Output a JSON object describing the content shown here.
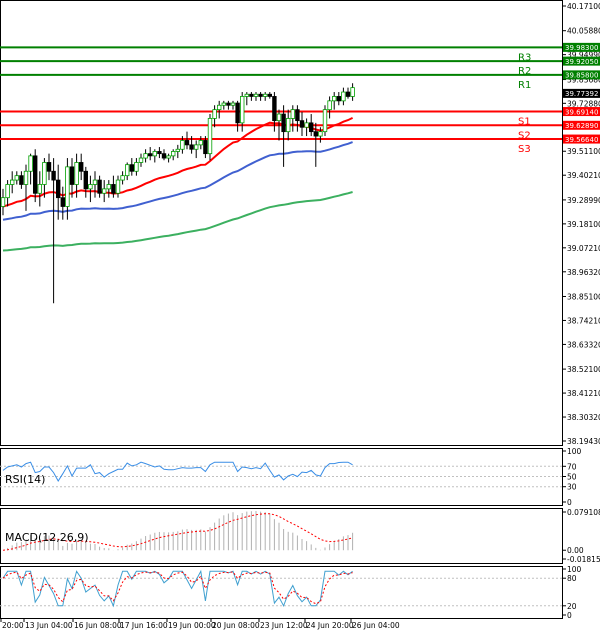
{
  "chart_data": {
    "type": "candlestick",
    "instrument_panel": {
      "y_ticks": [
        "40.17100",
        "40.05880",
        "39.94990",
        "39.83680",
        "39.72880",
        "39.62890",
        "39.51100",
        "39.40210",
        "39.28990",
        "39.18100",
        "39.07210",
        "38.96320",
        "38.85100",
        "38.74210",
        "38.63320",
        "38.52100",
        "38.41210",
        "38.30320",
        "38.19430"
      ],
      "ylim": [
        38.1943,
        40.171
      ],
      "x_ticks": [
        "20:00",
        "13 Jun 04:00",
        "16 Jun 08:00",
        "17 Jun 16:00",
        "19 Jun 00:00",
        "20 Jun 08:00",
        "23 Jun 12:00",
        "24 Jun 20:00",
        "26 Jun 04:00"
      ],
      "last_price": "39.77392",
      "levels": [
        {
          "name": "R3",
          "value": 39.983,
          "label": "39.98300",
          "color": "#008000"
        },
        {
          "name": "R2",
          "value": 39.9205,
          "label": "39.92050",
          "color": "#008000"
        },
        {
          "name": "R1",
          "value": 39.858,
          "label": "39.85800",
          "color": "#008000"
        },
        {
          "name": "S1",
          "value": 39.6914,
          "label": "39.69140",
          "color": "#ff0000"
        },
        {
          "name": "S2",
          "value": 39.6289,
          "label": "39.62890",
          "color": "#ff0000"
        },
        {
          "name": "S3",
          "value": 39.5664,
          "label": "39.56640",
          "color": "#ff0000"
        }
      ],
      "candles": [
        [
          39.26,
          39.34,
          39.22,
          39.3
        ],
        [
          39.3,
          39.38,
          39.26,
          39.36
        ],
        [
          39.36,
          39.42,
          39.32,
          39.38
        ],
        [
          39.38,
          39.42,
          39.36,
          39.4
        ],
        [
          39.4,
          39.42,
          39.34,
          39.36
        ],
        [
          39.36,
          39.45,
          39.24,
          39.42
        ],
        [
          39.42,
          39.5,
          39.36,
          39.49
        ],
        [
          39.49,
          39.52,
          39.28,
          39.32
        ],
        [
          39.32,
          39.42,
          39.26,
          39.36
        ],
        [
          39.36,
          39.48,
          39.3,
          39.46
        ],
        [
          39.46,
          39.5,
          39.38,
          39.42
        ],
        [
          39.42,
          39.48,
          38.82,
          39.38
        ],
        [
          39.38,
          39.45,
          39.2,
          39.3
        ],
        [
          39.3,
          39.35,
          39.2,
          39.26
        ],
        [
          39.26,
          39.48,
          39.2,
          39.44
        ],
        [
          39.44,
          39.48,
          39.3,
          39.36
        ],
        [
          39.36,
          39.5,
          39.3,
          39.46
        ],
        [
          39.46,
          39.5,
          39.38,
          39.42
        ],
        [
          39.42,
          39.44,
          39.3,
          39.34
        ],
        [
          39.34,
          39.4,
          39.28,
          39.36
        ],
        [
          39.36,
          39.42,
          39.3,
          39.38
        ],
        [
          39.38,
          39.4,
          39.3,
          39.32
        ],
        [
          39.32,
          39.38,
          39.28,
          39.34
        ],
        [
          39.34,
          39.38,
          39.3,
          39.36
        ],
        [
          39.36,
          39.4,
          39.3,
          39.32
        ],
        [
          39.32,
          39.4,
          39.3,
          39.38
        ],
        [
          39.38,
          39.42,
          39.36,
          39.4
        ],
        [
          39.4,
          39.46,
          39.38,
          39.45
        ],
        [
          39.45,
          39.48,
          39.4,
          39.42
        ],
        [
          39.42,
          39.48,
          39.4,
          39.46
        ],
        [
          39.46,
          39.5,
          39.44,
          39.48
        ],
        [
          39.48,
          39.52,
          39.46,
          39.5
        ],
        [
          39.5,
          39.53,
          39.47,
          39.49
        ],
        [
          39.49,
          39.52,
          39.46,
          39.51
        ],
        [
          39.51,
          39.53,
          39.48,
          39.5
        ],
        [
          39.5,
          39.52,
          39.47,
          39.48
        ],
        [
          39.48,
          39.5,
          39.46,
          39.49
        ],
        [
          39.49,
          39.52,
          39.47,
          39.51
        ],
        [
          39.51,
          39.54,
          39.48,
          39.52
        ],
        [
          39.52,
          39.58,
          39.5,
          39.56
        ],
        [
          39.56,
          39.6,
          39.52,
          39.54
        ],
        [
          39.54,
          39.58,
          39.5,
          39.52
        ],
        [
          39.52,
          39.56,
          39.48,
          39.54
        ],
        [
          39.54,
          39.58,
          39.52,
          39.56
        ],
        [
          39.56,
          39.58,
          39.48,
          39.5
        ],
        [
          39.5,
          39.68,
          39.47,
          39.66
        ],
        [
          39.66,
          39.72,
          39.62,
          39.7
        ],
        [
          39.7,
          39.74,
          39.66,
          39.72
        ],
        [
          39.72,
          39.74,
          39.7,
          39.73
        ],
        [
          39.73,
          39.74,
          39.7,
          39.72
        ],
        [
          39.72,
          39.74,
          39.7,
          39.73
        ],
        [
          39.73,
          39.74,
          39.6,
          39.64
        ],
        [
          39.64,
          39.78,
          39.6,
          39.76
        ],
        [
          39.76,
          39.78,
          39.72,
          39.77
        ],
        [
          39.77,
          39.78,
          39.74,
          39.76
        ],
        [
          39.76,
          39.78,
          39.74,
          39.77
        ],
        [
          39.77,
          39.78,
          39.74,
          39.76
        ],
        [
          39.76,
          39.78,
          39.74,
          39.77
        ],
        [
          39.77,
          39.78,
          39.75,
          39.76
        ],
        [
          39.76,
          39.78,
          39.6,
          39.65
        ],
        [
          39.65,
          39.7,
          39.56,
          39.68
        ],
        [
          39.68,
          39.72,
          39.44,
          39.6
        ],
        [
          39.6,
          39.7,
          39.56,
          39.66
        ],
        [
          39.66,
          39.72,
          39.6,
          39.7
        ],
        [
          39.7,
          39.72,
          39.6,
          39.65
        ],
        [
          39.65,
          39.69,
          39.58,
          39.62
        ],
        [
          39.62,
          39.66,
          39.58,
          39.64
        ],
        [
          39.64,
          39.68,
          39.58,
          39.6
        ],
        [
          39.6,
          39.64,
          39.44,
          39.58
        ],
        [
          39.58,
          39.62,
          39.55,
          39.6
        ],
        [
          39.6,
          39.72,
          39.58,
          39.7
        ],
        [
          39.7,
          39.76,
          39.66,
          39.74
        ],
        [
          39.74,
          39.78,
          39.7,
          39.76
        ],
        [
          39.76,
          39.78,
          39.72,
          39.74
        ],
        [
          39.74,
          39.8,
          39.72,
          39.78
        ],
        [
          39.78,
          39.8,
          39.75,
          39.76
        ],
        [
          39.76,
          39.82,
          39.74,
          39.8
        ]
      ]
    },
    "rsi_panel": {
      "label": "RSI(14)",
      "y_ticks": [
        "100",
        "70",
        "50",
        "30",
        "0"
      ],
      "ylim": [
        0,
        100
      ]
    },
    "macd_panel": {
      "label": "MACD(12,26,9)",
      "y_ticks": [
        "0.079108",
        "0.00",
        "-0.018159"
      ],
      "ylim": [
        -0.018159,
        0.079108
      ]
    },
    "stoch_panel": {
      "y_ticks": [
        "100",
        "80",
        "20",
        "0"
      ],
      "ylim": [
        0,
        100
      ]
    },
    "colors": {
      "bull": "#00a000",
      "bear": "#000000",
      "ma_fast": "#ff0000",
      "ma_mid": "#4060d0",
      "ma_slow": "#3cb060",
      "rsi": "#3a8ee6",
      "macd_signal": "#ff0000",
      "stoch_main": "#40a0d0",
      "stoch_signal": "#ff0000"
    }
  }
}
